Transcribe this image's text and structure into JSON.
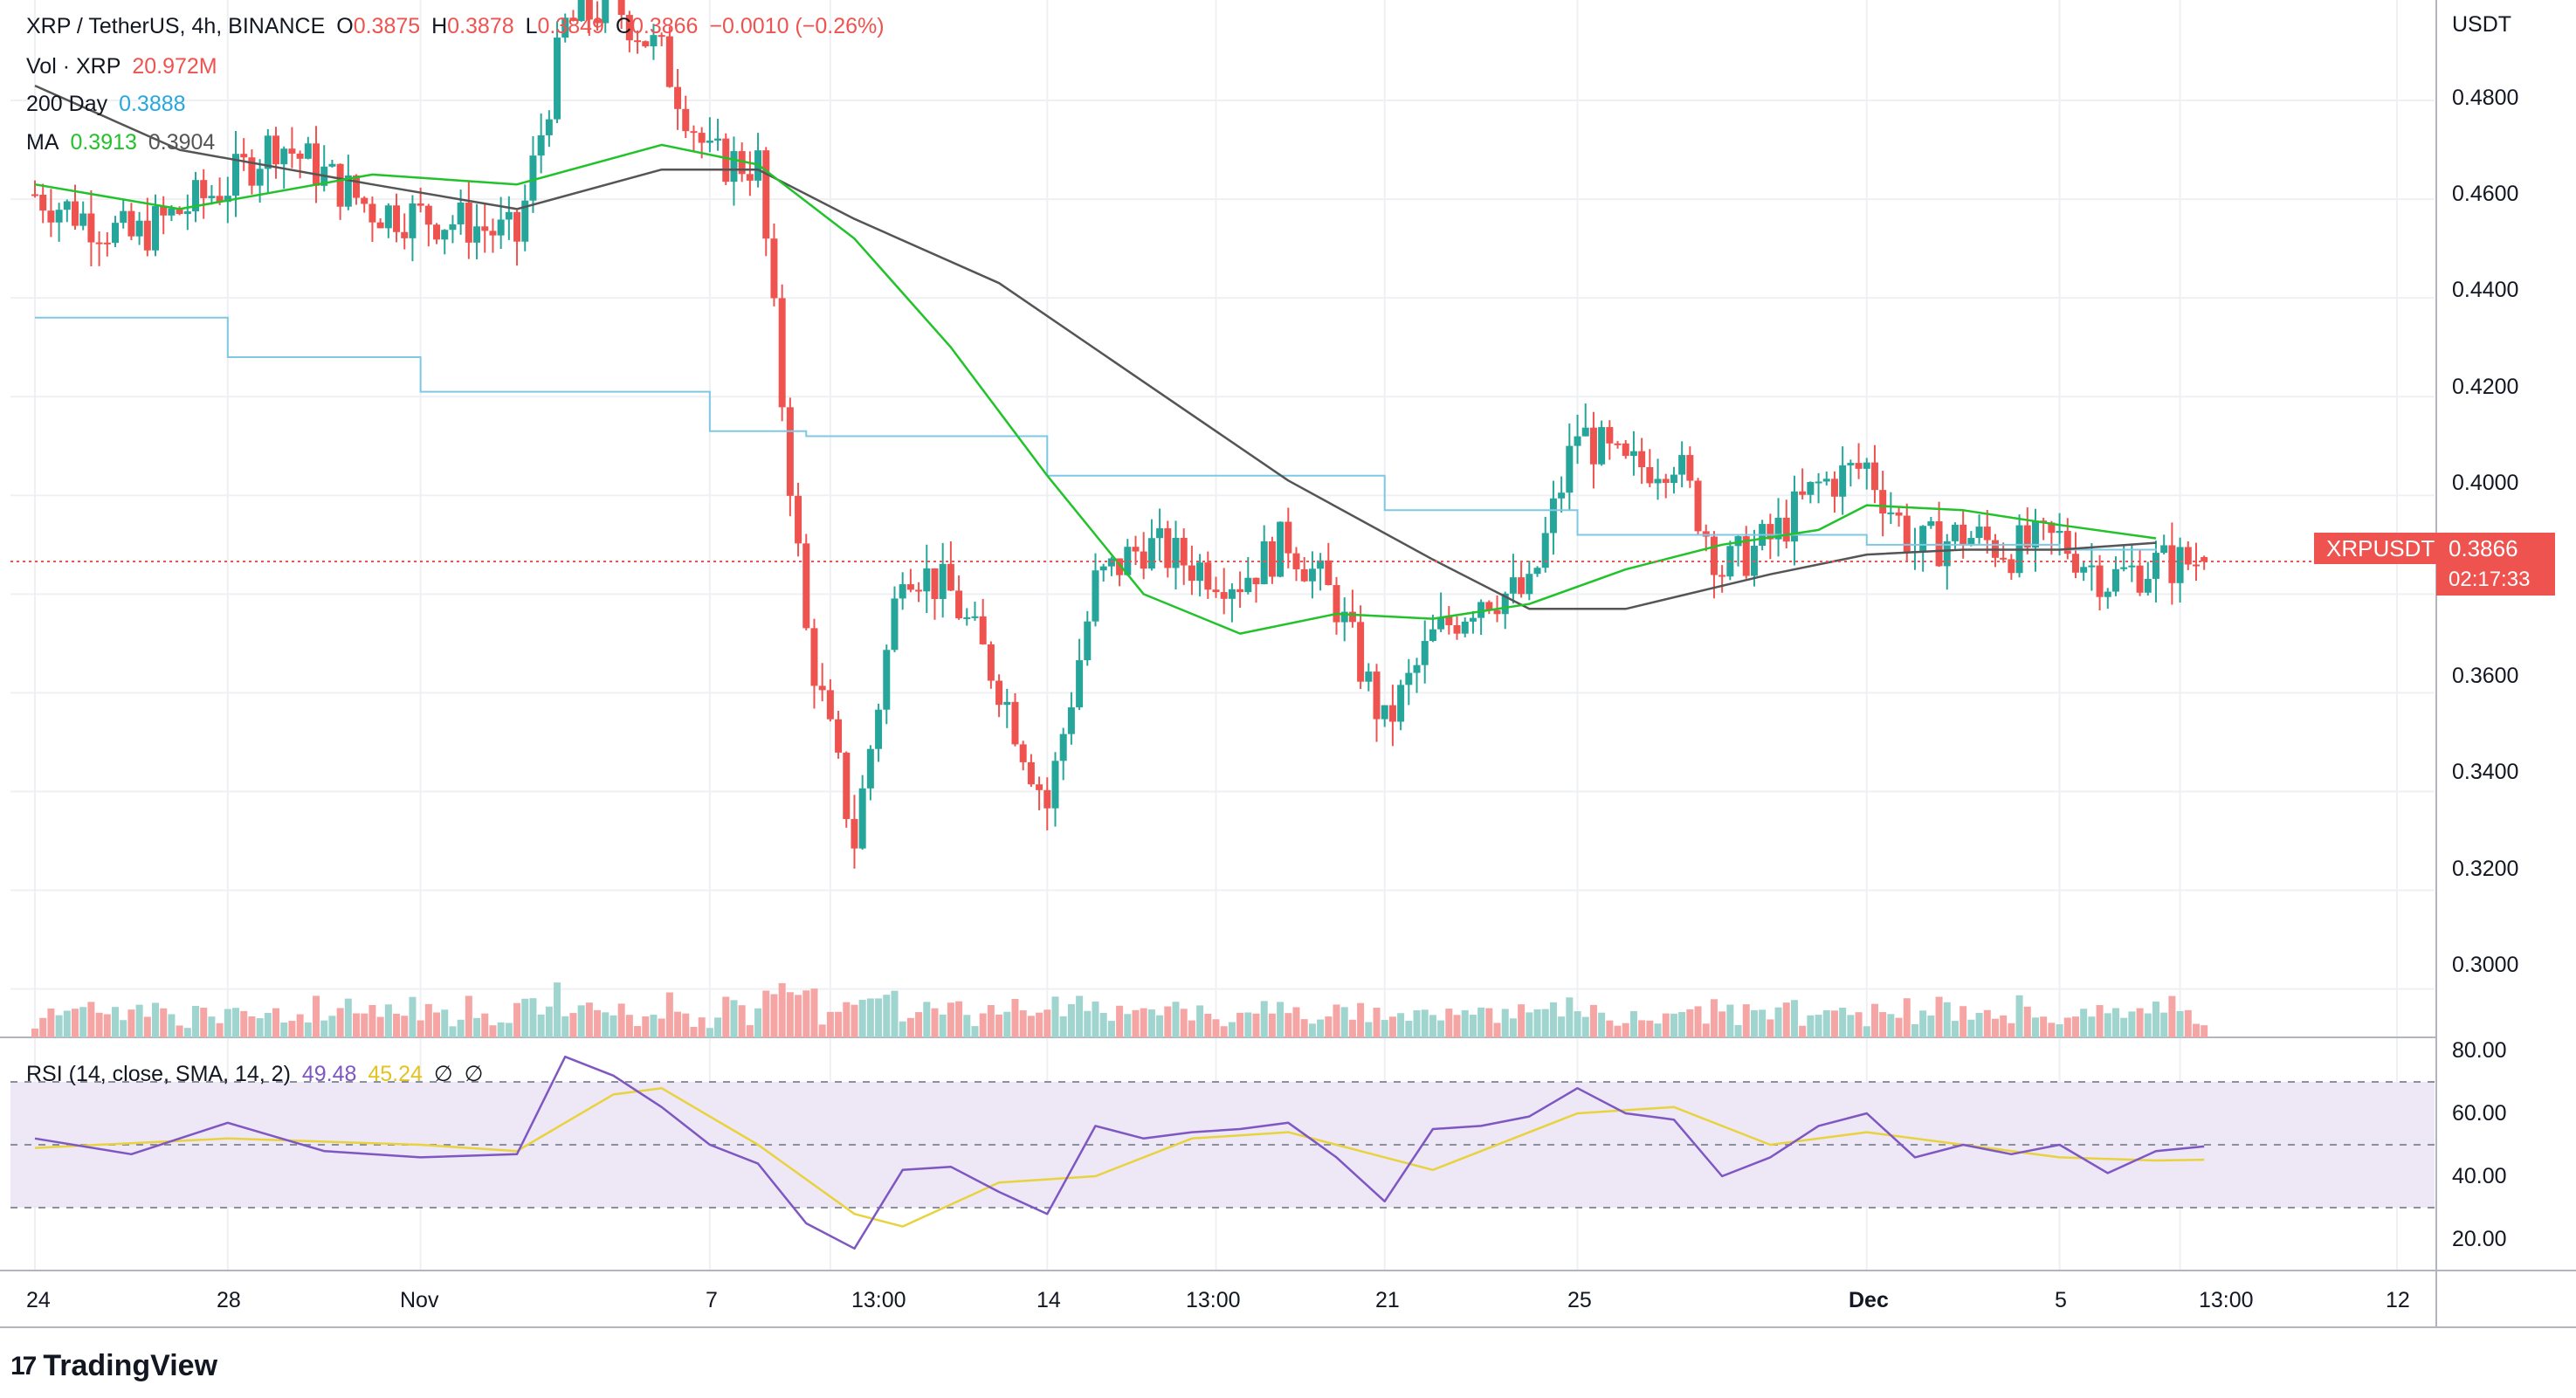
{
  "header": {
    "symbol": "XRP / TetherUS, 4h, BINANCE",
    "open_key": "O",
    "open": "0.3875",
    "high_key": "H",
    "high": "0.3878",
    "low_key": "L",
    "low": "0.3849",
    "close_key": "C",
    "close": "0.3866",
    "change": "−0.0010 (−0.26%)"
  },
  "indicators": {
    "vol_label": "Vol · XRP",
    "vol_value": "20.972M",
    "day200_label": "200 Day",
    "day200_value": "0.3888",
    "ma_label": "MA",
    "ma_value1": "0.3913",
    "ma_value2": "0.3904",
    "rsi_label": "RSI (14, close, SMA, 14, 2)",
    "rsi_value": "49.48",
    "rsi_sma": "45.24",
    "rsi_na1": "∅",
    "rsi_na2": "∅"
  },
  "price_axis": {
    "currency": "USDT",
    "ticks": [
      "0.4800",
      "0.4600",
      "0.4400",
      "0.4200",
      "0.4000",
      "0.3600",
      "0.3400",
      "0.3200",
      "0.3000"
    ]
  },
  "rsi_axis": {
    "ticks": [
      "80.00",
      "60.00",
      "40.00",
      "20.00"
    ]
  },
  "time_axis": {
    "ticks": [
      "24",
      "28",
      "Nov",
      "7",
      "13:00",
      "14",
      "13:00",
      "21",
      "25",
      "Dec",
      "5",
      "13:00",
      "12"
    ]
  },
  "last_price": {
    "symbol": "XRPUSDT",
    "price": "0.3866",
    "countdown": "02:17:33"
  },
  "brand": {
    "name": "TradingView",
    "mark": "17"
  },
  "colors": {
    "up": "#26a69a",
    "down": "#ef5350",
    "ma_fast": "#22c22a",
    "ma_slow": "#555555",
    "day200": "#7ec8e3",
    "rsi": "#7e57c2",
    "rsi_sma": "#e8d33f",
    "rsi_band": "#ede7f6"
  },
  "chart_data": [
    {
      "type": "candlestick",
      "title": "XRP / TetherUS, 4h, BINANCE",
      "x_dates": [
        "Oct 24",
        "Oct 28",
        "Nov 1",
        "Nov 7",
        "Nov 14",
        "Nov 21",
        "Nov 25",
        "Dec 1",
        "Dec 5",
        "Dec 12"
      ],
      "ylim": [
        0.29,
        0.5
      ],
      "close_path": [
        [
          "Oct 24",
          0.461
        ],
        [
          "Oct 26",
          0.452
        ],
        [
          "Oct 28",
          0.463
        ],
        [
          "Oct 29",
          0.472
        ],
        [
          "Oct 31",
          0.458
        ],
        [
          "Nov 2",
          0.455
        ],
        [
          "Nov 3",
          0.452
        ],
        [
          "Nov 4",
          0.495
        ],
        [
          "Nov 5",
          0.5
        ],
        [
          "Nov 6",
          0.489
        ],
        [
          "Nov 7",
          0.468
        ],
        [
          "Nov 8",
          0.467
        ],
        [
          "Nov 9",
          0.372
        ],
        [
          "Nov 10",
          0.33
        ],
        [
          "Nov 11",
          0.387
        ],
        [
          "Nov 12",
          0.38
        ],
        [
          "Nov 13",
          0.362
        ],
        [
          "Nov 14",
          0.337
        ],
        [
          "Nov 15",
          0.382
        ],
        [
          "Nov 16",
          0.39
        ],
        [
          "Nov 17",
          0.386
        ],
        [
          "Nov 18",
          0.383
        ],
        [
          "Nov 19",
          0.391
        ],
        [
          "Nov 20",
          0.378
        ],
        [
          "Nov 21",
          0.353
        ],
        [
          "Nov 22",
          0.371
        ],
        [
          "Nov 23",
          0.38
        ],
        [
          "Nov 24",
          0.38
        ],
        [
          "Nov 25",
          0.413
        ],
        [
          "Nov 26",
          0.405
        ],
        [
          "Nov 27",
          0.408
        ],
        [
          "Nov 28",
          0.385
        ],
        [
          "Nov 29",
          0.391
        ],
        [
          "Nov 30",
          0.402
        ],
        [
          "Dec 1",
          0.406
        ],
        [
          "Dec 2",
          0.389
        ],
        [
          "Dec 3",
          0.392
        ],
        [
          "Dec 4",
          0.389
        ],
        [
          "Dec 5",
          0.391
        ],
        [
          "Dec 6",
          0.383
        ],
        [
          "Dec 7",
          0.386
        ],
        [
          "Dec 8",
          0.3866
        ]
      ],
      "ma_fast": [
        [
          "Oct 24",
          0.463
        ],
        [
          "Oct 27",
          0.458
        ],
        [
          "Oct 31",
          0.465
        ],
        [
          "Nov 3",
          0.463
        ],
        [
          "Nov 6",
          0.471
        ],
        [
          "Nov 8",
          0.467
        ],
        [
          "Nov 10",
          0.452
        ],
        [
          "Nov 12",
          0.43
        ],
        [
          "Nov 14",
          0.404
        ],
        [
          "Nov 16",
          0.38
        ],
        [
          "Nov 18",
          0.372
        ],
        [
          "Nov 20",
          0.376
        ],
        [
          "Nov 22",
          0.375
        ],
        [
          "Nov 24",
          0.378
        ],
        [
          "Nov 26",
          0.385
        ],
        [
          "Nov 28",
          0.39
        ],
        [
          "Nov 30",
          0.393
        ],
        [
          "Dec 1",
          0.398
        ],
        [
          "Dec 3",
          0.397
        ],
        [
          "Dec 5",
          0.394
        ],
        [
          "Dec 7",
          0.3913
        ]
      ],
      "ma_slow": [
        [
          "Oct 24",
          0.483
        ],
        [
          "Oct 27",
          0.47
        ],
        [
          "Oct 31",
          0.463
        ],
        [
          "Nov 3",
          0.458
        ],
        [
          "Nov 6",
          0.466
        ],
        [
          "Nov 8",
          0.466
        ],
        [
          "Nov 10",
          0.456
        ],
        [
          "Nov 13",
          0.443
        ],
        [
          "Nov 16",
          0.423
        ],
        [
          "Nov 19",
          0.403
        ],
        [
          "Nov 22",
          0.387
        ],
        [
          "Nov 24",
          0.377
        ],
        [
          "Nov 26",
          0.377
        ],
        [
          "Nov 29",
          0.384
        ],
        [
          "Dec 1",
          0.388
        ],
        [
          "Dec 3",
          0.389
        ],
        [
          "Dec 5",
          0.389
        ],
        [
          "Dec 7",
          0.3904
        ]
      ],
      "day200": [
        [
          "Oct 24",
          0.436
        ],
        [
          "Oct 28",
          0.428
        ],
        [
          "Nov 1",
          0.421
        ],
        [
          "Nov 7",
          0.413
        ],
        [
          "Nov 9",
          0.412
        ],
        [
          "Nov 14",
          0.404
        ],
        [
          "Nov 21",
          0.397
        ],
        [
          "Nov 25",
          0.392
        ],
        [
          "Dec 1",
          0.39
        ],
        [
          "Dec 5",
          0.389
        ],
        [
          "Dec 7",
          0.3888
        ]
      ],
      "last_price_line": 0.3866
    },
    {
      "type": "bar",
      "title": "Vol · XRP",
      "last_value": "20.972M"
    },
    {
      "type": "line",
      "title": "RSI (14, close, SMA, 14, 2)",
      "ylim": [
        10,
        85
      ],
      "bands": [
        30,
        50,
        70
      ],
      "rsi": [
        [
          "Oct 24",
          52
        ],
        [
          "Oct 26",
          47
        ],
        [
          "Oct 28",
          57
        ],
        [
          "Oct 30",
          48
        ],
        [
          "Nov 1",
          46
        ],
        [
          "Nov 3",
          47
        ],
        [
          "Nov 4",
          78
        ],
        [
          "Nov 5",
          72
        ],
        [
          "Nov 6",
          62
        ],
        [
          "Nov 7",
          50
        ],
        [
          "Nov 8",
          44
        ],
        [
          "Nov 9",
          25
        ],
        [
          "Nov 10",
          17
        ],
        [
          "Nov 11",
          42
        ],
        [
          "Nov 12",
          43
        ],
        [
          "Nov 13",
          35
        ],
        [
          "Nov 14",
          28
        ],
        [
          "Nov 15",
          56
        ],
        [
          "Nov 16",
          52
        ],
        [
          "Nov 17",
          54
        ],
        [
          "Nov 18",
          55
        ],
        [
          "Nov 19",
          57
        ],
        [
          "Nov 20",
          46
        ],
        [
          "Nov 21",
          32
        ],
        [
          "Nov 22",
          55
        ],
        [
          "Nov 23",
          56
        ],
        [
          "Nov 24",
          59
        ],
        [
          "Nov 25",
          68
        ],
        [
          "Nov 26",
          60
        ],
        [
          "Nov 27",
          58
        ],
        [
          "Nov 28",
          40
        ],
        [
          "Nov 29",
          46
        ],
        [
          "Nov 30",
          56
        ],
        [
          "Dec 1",
          60
        ],
        [
          "Dec 2",
          46
        ],
        [
          "Dec 3",
          50
        ],
        [
          "Dec 4",
          47
        ],
        [
          "Dec 5",
          50
        ],
        [
          "Dec 6",
          41
        ],
        [
          "Dec 7",
          48
        ],
        [
          "Dec 8",
          49.48
        ]
      ],
      "rsi_sma": [
        [
          "Oct 24",
          49
        ],
        [
          "Oct 28",
          52
        ],
        [
          "Nov 1",
          50
        ],
        [
          "Nov 3",
          48
        ],
        [
          "Nov 5",
          66
        ],
        [
          "Nov 6",
          68
        ],
        [
          "Nov 8",
          50
        ],
        [
          "Nov 10",
          28
        ],
        [
          "Nov 11",
          24
        ],
        [
          "Nov 13",
          38
        ],
        [
          "Nov 15",
          40
        ],
        [
          "Nov 17",
          52
        ],
        [
          "Nov 19",
          54
        ],
        [
          "Nov 21",
          46
        ],
        [
          "Nov 22",
          42
        ],
        [
          "Nov 25",
          60
        ],
        [
          "Nov 27",
          62
        ],
        [
          "Nov 29",
          50
        ],
        [
          "Dec 1",
          54
        ],
        [
          "Dec 3",
          50
        ],
        [
          "Dec 5",
          46
        ],
        [
          "Dec 7",
          45
        ],
        [
          "Dec 8",
          45.24
        ]
      ]
    }
  ]
}
